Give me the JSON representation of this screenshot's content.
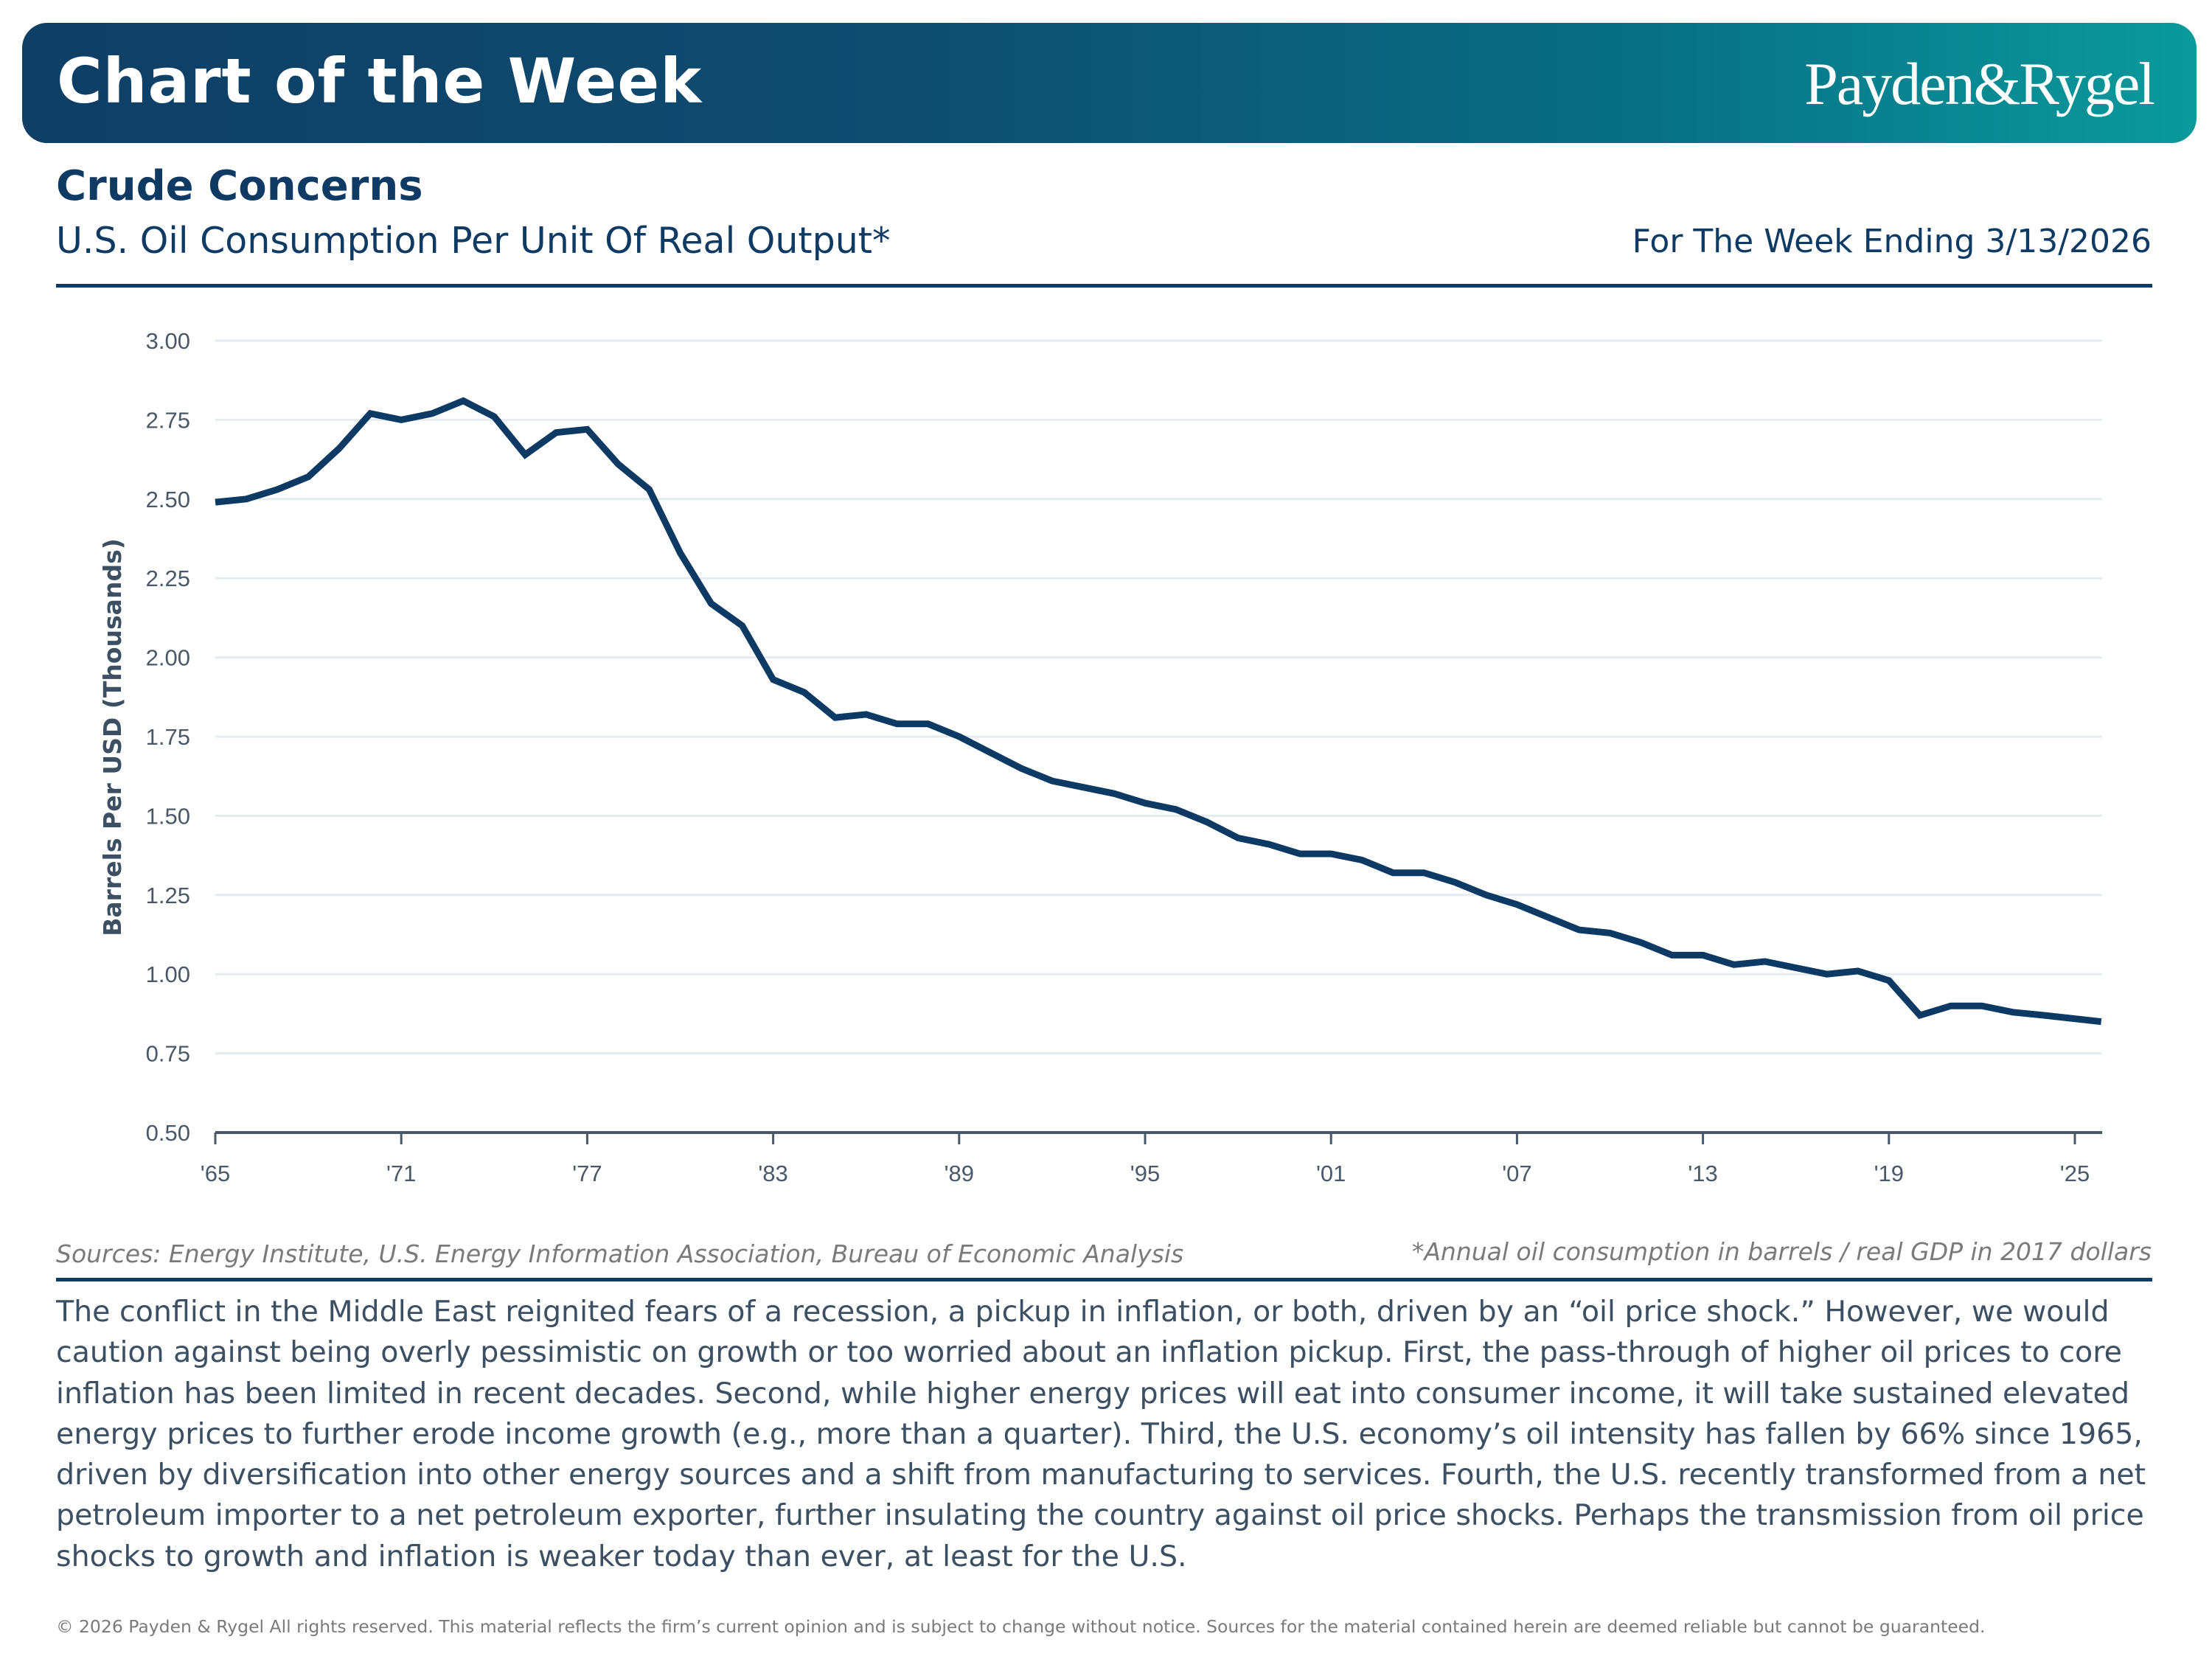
{
  "header": {
    "banner_title": "Chart of the Week",
    "brand": "Payden&Rygel",
    "headline": "Crude Concerns",
    "subtitle": "U.S. Oil Consumption Per Unit Of Real Output*",
    "week_ending": "For The Week Ending 3/13/2026"
  },
  "colors": {
    "navy": "#0f3a63",
    "line": "#0c3a64",
    "grid": "#e4ecf0",
    "banner_start": "#0f3e66",
    "banner_end": "#0a9a9c"
  },
  "chart_data": {
    "type": "line",
    "title": "U.S. Oil Consumption Per Unit Of Real Output*",
    "xlabel": "",
    "ylabel": "Barrels Per USD (Thousands)",
    "ylim": [
      0.5,
      3.0
    ],
    "xlim": [
      1965,
      2025.85
    ],
    "y_ticks": [
      "0.50",
      "0.75",
      "1.00",
      "1.25",
      "1.50",
      "1.75",
      "2.00",
      "2.25",
      "2.50",
      "2.75",
      "3.00"
    ],
    "y_tick_values": [
      0.5,
      0.75,
      1.0,
      1.25,
      1.5,
      1.75,
      2.0,
      2.25,
      2.5,
      2.75,
      3.0
    ],
    "x_ticks": [
      "'65",
      "'71",
      "'77",
      "'83",
      "'89",
      "'95",
      "'01",
      "'07",
      "'13",
      "'19",
      "'25"
    ],
    "x_tick_values": [
      1965,
      1971,
      1977,
      1983,
      1989,
      1995,
      2001,
      2007,
      2013,
      2019,
      2025
    ],
    "grid": true,
    "legend": "none",
    "series": [
      {
        "name": "Oil consumption per unit of real output",
        "x": [
          1965,
          1966,
          1967,
          1968,
          1969,
          1970,
          1971,
          1972,
          1973,
          1974,
          1975,
          1976,
          1977,
          1978,
          1979,
          1980,
          1981,
          1982,
          1983,
          1984,
          1985,
          1986,
          1987,
          1988,
          1989,
          1990,
          1991,
          1992,
          1993,
          1994,
          1995,
          1996,
          1997,
          1998,
          1999,
          2000,
          2001,
          2002,
          2003,
          2004,
          2005,
          2006,
          2007,
          2008,
          2009,
          2010,
          2011,
          2012,
          2013,
          2014,
          2015,
          2016,
          2017,
          2018,
          2019,
          2020,
          2021,
          2022,
          2023,
          2024,
          2025.85
        ],
        "values": [
          2.49,
          2.5,
          2.53,
          2.57,
          2.66,
          2.77,
          2.75,
          2.77,
          2.81,
          2.76,
          2.64,
          2.71,
          2.72,
          2.61,
          2.53,
          2.33,
          2.17,
          2.1,
          1.93,
          1.89,
          1.81,
          1.82,
          1.79,
          1.79,
          1.75,
          1.7,
          1.65,
          1.61,
          1.59,
          1.57,
          1.54,
          1.52,
          1.48,
          1.43,
          1.41,
          1.38,
          1.38,
          1.36,
          1.32,
          1.32,
          1.29,
          1.25,
          1.22,
          1.18,
          1.14,
          1.13,
          1.1,
          1.06,
          1.06,
          1.03,
          1.04,
          1.02,
          1.0,
          1.01,
          0.98,
          0.87,
          0.9,
          0.9,
          0.88,
          0.87,
          0.85
        ]
      }
    ]
  },
  "footer": {
    "sources": "Sources: Energy Institute, U.S. Energy Information Association, Bureau of Economic Analysis",
    "footnote": "*Annual oil consumption in barrels / real GDP in 2017 dollars",
    "commentary": "The conflict in the Middle East reignited fears of a recession, a pickup in inflation, or both, driven by an “oil price shock.” However, we would caution against being overly pessimistic on growth or too worried about an inflation pickup. First, the pass-through of higher oil prices to core inflation has been limited in recent decades. Second, while higher energy prices will eat into consumer income, it will take sustained elevated energy prices to further erode income growth (e.g., more than a quarter). Third, the U.S. economy’s oil intensity has fallen by 66% since 1965, driven by diversification into other energy sources and a shift from manufacturing to services. Fourth, the U.S. recently transformed from a net petroleum importer to a net petroleum exporter, further insulating the country against oil price shocks. Perhaps the transmission from oil price shocks to growth and inflation is weaker today than ever, at least for the U.S.",
    "copyright": "© 2026 Payden & Rygel All rights reserved. This material reflects the firm’s current opinion and is subject to change without notice. Sources for the material contained herein are deemed reliable but cannot be guaranteed."
  }
}
